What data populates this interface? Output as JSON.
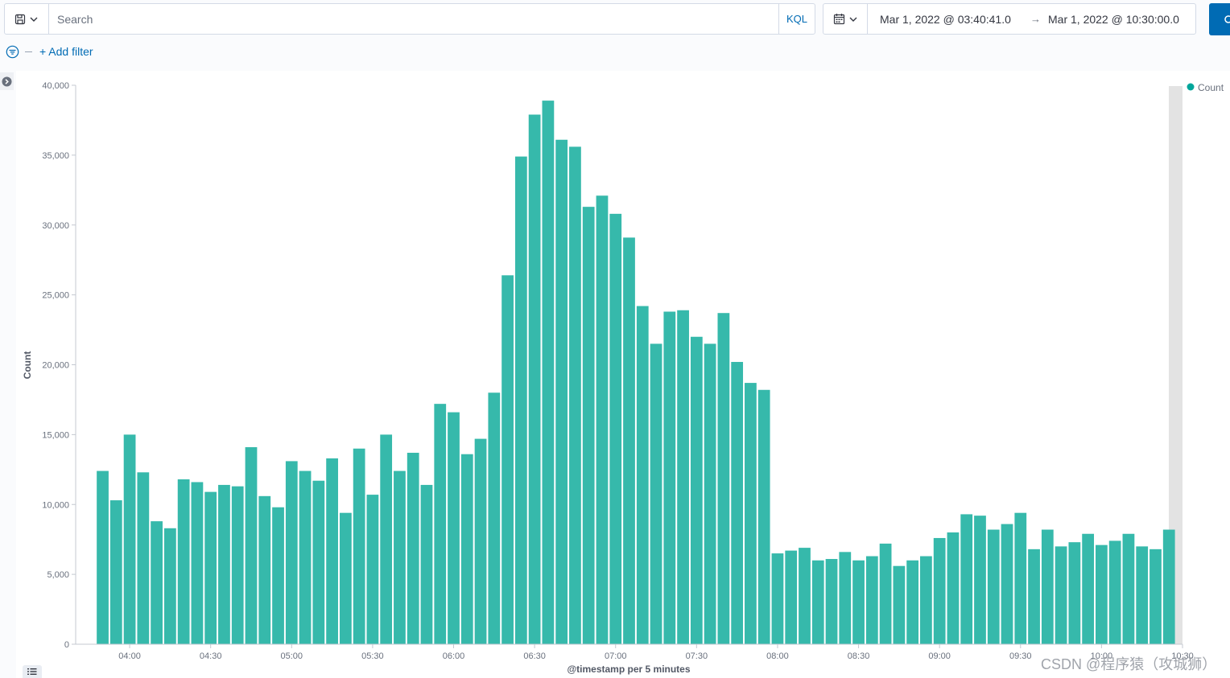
{
  "query_bar": {
    "search_placeholder": "Search",
    "language_label": "KQL"
  },
  "date_picker": {
    "start": "Mar 1, 2022 @ 03:40:41.0",
    "arrow": "→",
    "end": "Mar 1, 2022 @ 10:30:00.0"
  },
  "filter_bar": {
    "add_filter_label": "+ Add filter"
  },
  "colors": {
    "bar": "#36b9ab",
    "accent": "#006bb4",
    "legend_dot": "#00a69b",
    "brush": "#e3e3e3"
  },
  "icons": {
    "saved_query": "save-query-icon",
    "chevron": "chevron-down-icon",
    "calendar": "calendar-icon",
    "filter_options": "filter-options-icon",
    "collapse": "arrow-circle-icon",
    "toggle": "list-icon",
    "refresh": "refresh-icon"
  },
  "watermark": "CSDN @程序猿（攻城狮）",
  "chart_data": {
    "type": "bar",
    "title": "",
    "xlabel": "@timestamp per 5 minutes",
    "ylabel": "Count",
    "x_start": "03:50",
    "x_end": "10:25",
    "interval_minutes": 5,
    "xlim": [
      "03:40",
      "10:30"
    ],
    "ylim": [
      0,
      40000
    ],
    "yticks": [
      0,
      5000,
      10000,
      15000,
      20000,
      25000,
      30000,
      35000,
      40000
    ],
    "ytick_labels": [
      "0",
      "5,000",
      "10,000",
      "15,000",
      "20,000",
      "25,000",
      "30,000",
      "35,000",
      "40,000"
    ],
    "xticks": [
      "04:00",
      "04:30",
      "05:00",
      "05:30",
      "06:00",
      "06:30",
      "07:00",
      "07:30",
      "08:00",
      "08:30",
      "09:00",
      "09:30",
      "10:00",
      "10:30"
    ],
    "legend": {
      "position": "top-right",
      "entries": [
        "Count"
      ]
    },
    "grid": false,
    "series": [
      {
        "name": "Count",
        "values": [
          12400,
          10300,
          15000,
          12300,
          8800,
          8300,
          11800,
          11600,
          10900,
          11400,
          11300,
          14100,
          10600,
          9800,
          13100,
          12400,
          11700,
          13300,
          9400,
          14000,
          10700,
          15000,
          12400,
          13700,
          11400,
          17200,
          16600,
          13600,
          14700,
          18000,
          26400,
          34900,
          37900,
          38900,
          36100,
          35600,
          31300,
          32100,
          30800,
          29100,
          24200,
          21500,
          23800,
          23900,
          22000,
          21500,
          23700,
          20200,
          18700,
          18200,
          6500,
          6700,
          6900,
          6000,
          6100,
          6600,
          6000,
          6300,
          7200,
          5600,
          6000,
          6300,
          7600,
          8000,
          9300,
          9200,
          8200,
          8600,
          9400,
          6800,
          8200,
          7000,
          7300,
          7900,
          7100,
          7400,
          7900,
          7000,
          6800,
          8200
        ]
      }
    ]
  }
}
